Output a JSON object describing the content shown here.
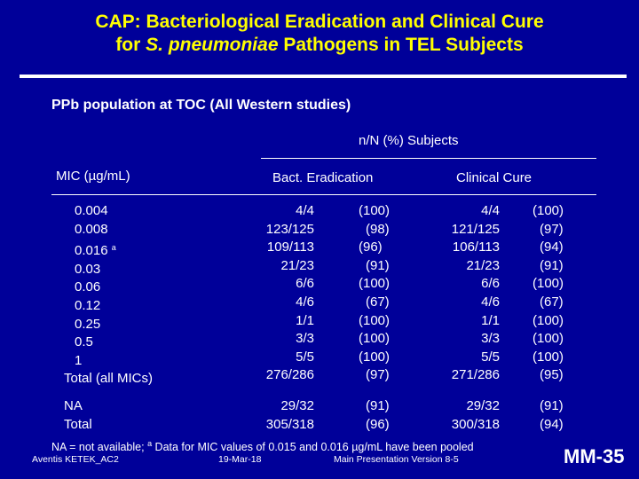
{
  "slide": {
    "title_line1": "CAP: Bacteriological Eradication and Clinical Cure",
    "title_line2_pre": "for ",
    "title_line2_italic": "S. pneumoniae",
    "title_line2_post": " Pathogens in TEL Subjects",
    "subtitle": "PPb population at TOC (All Western studies)",
    "page_number": "MM-35"
  },
  "table": {
    "group_header": "n/N (%) Subjects",
    "mic_header": "MIC (µg/mL)",
    "bact_header": "Bact. Eradication",
    "clin_header": "Clinical Cure",
    "rows": [
      {
        "mic": "0.004",
        "be_frac": "4/4",
        "be_pct": "(100)",
        "cc_frac": "4/4",
        "cc_pct": "(100)"
      },
      {
        "mic": "0.008",
        "be_frac": "123/125",
        "be_pct": "(98)",
        "cc_frac": "121/125",
        "cc_pct": "(97)"
      },
      {
        "mic": "0.016 ",
        "mic_sup": "a",
        "be_frac": "109/113",
        "be_pct": "(96)",
        "cc_frac": "106/113",
        "cc_pct": "(94)"
      },
      {
        "mic": "0.03",
        "be_frac": "21/23",
        "be_pct": "(91)",
        "cc_frac": "21/23",
        "cc_pct": "(91)"
      },
      {
        "mic": "0.06",
        "be_frac": "6/6",
        "be_pct": "(100)",
        "cc_frac": "6/6",
        "cc_pct": "(100)"
      },
      {
        "mic": "0.12",
        "be_frac": "4/6",
        "be_pct": "(67)",
        "cc_frac": "4/6",
        "cc_pct": "(67)"
      },
      {
        "mic": "0.25",
        "be_frac": "1/1",
        "be_pct": "(100)",
        "cc_frac": "1/1",
        "cc_pct": "(100)"
      },
      {
        "mic": "0.5",
        "be_frac": "3/3",
        "be_pct": "(100)",
        "cc_frac": "3/3",
        "cc_pct": "(100)"
      },
      {
        "mic": "1",
        "be_frac": "5/5",
        "be_pct": "(100)",
        "cc_frac": "5/5",
        "cc_pct": "(100)"
      },
      {
        "mic": "Total (all MICs)",
        "be_frac": "276/286",
        "be_pct": "(97)",
        "cc_frac": "271/286",
        "cc_pct": "(95)"
      }
    ],
    "rows2": [
      {
        "mic": "NA",
        "be_frac": "29/32",
        "be_pct": "(91)",
        "cc_frac": "29/32",
        "cc_pct": "(91)"
      },
      {
        "mic": "Total",
        "be_frac": "305/318",
        "be_pct": "(96)",
        "cc_frac": "300/318",
        "cc_pct": "(94)"
      }
    ]
  },
  "footnote": {
    "pre": "NA = not available; ",
    "sup": "a",
    "post": " Data for MIC values of 0.015 and 0.016 µg/mL have been pooled"
  },
  "footer": {
    "left": "Aventis KETEK_AC2",
    "date": "19-Mar-18",
    "version": "Main Presentation Version 8-5"
  },
  "colors": {
    "background": "#000099",
    "title": "#ffff00",
    "text": "#ffffff"
  }
}
